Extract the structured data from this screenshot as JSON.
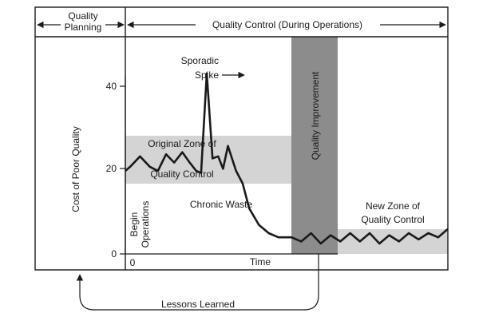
{
  "header": {
    "planning_line1": "Quality",
    "planning_line2": "Planning",
    "control_label": "Quality Control (During Operations)"
  },
  "labels": {
    "y_axis": "Cost of Poor Quality",
    "x_axis": "Time",
    "x_origin": "0",
    "sporadic_line1": "Sporadic",
    "sporadic_line2": "Spike",
    "original_zone_line1": "Original Zone of",
    "original_zone_line2": "Quality Control",
    "chronic_waste": "Chronic Waste",
    "begin_line1": "Begin",
    "begin_line2": "Operations",
    "quality_improvement": "Quality Improvement",
    "new_zone_line1": "New Zone of",
    "new_zone_line2": "Quality Control",
    "lessons_learned": "Lessons Learned"
  },
  "y_ticks": [
    "0",
    "20",
    "40"
  ],
  "colors": {
    "zone_band": "#d4d4d4",
    "improvement_band": "#8c8c8c",
    "line": "#1a1a1a"
  },
  "chart_data": {
    "type": "line",
    "xlabel": "Time",
    "ylabel": "Cost of Poor Quality",
    "ylim": [
      0,
      48
    ],
    "yticks": [
      0,
      20,
      40
    ],
    "series": [
      {
        "x": [
          0,
          0.3,
          0.9,
          1.5,
          2.0,
          2.5,
          3.0,
          3.5,
          3.95,
          4.35,
          4.65,
          5.0,
          5.35,
          5.7,
          6.0,
          6.3,
          6.8,
          7.2,
          7.6,
          8.2,
          8.8,
          9.4,
          10.2,
          10.8,
          11.4,
          12.0,
          12.6,
          13.2,
          13.8,
          14.4,
          15.0,
          15.6,
          16.2,
          16.8,
          17.4,
          18.0,
          18.6,
          19.2,
          19.8
        ],
        "y": [
          20,
          21,
          23.5,
          21,
          20,
          24,
          22,
          24.5,
          22,
          20,
          19.5,
          43.5,
          23,
          23.5,
          20.5,
          26,
          20,
          17,
          11,
          7,
          5,
          4,
          4,
          3,
          5,
          2.5,
          4.5,
          3,
          5,
          3,
          5,
          2.5,
          4.5,
          3,
          5,
          3.5,
          5,
          4,
          6
        ]
      }
    ],
    "bands": [
      {
        "name": "Original Zone of Quality Control",
        "y": [
          16.5,
          28.5
        ],
        "x": [
          0,
          10.2
        ]
      },
      {
        "name": "Quality Improvement",
        "x": [
          10.2,
          13.2
        ],
        "y": [
          0,
          52
        ]
      },
      {
        "name": "New Zone of Quality Control",
        "y": [
          0,
          6
        ],
        "x": [
          13.2,
          19.8
        ]
      }
    ]
  }
}
